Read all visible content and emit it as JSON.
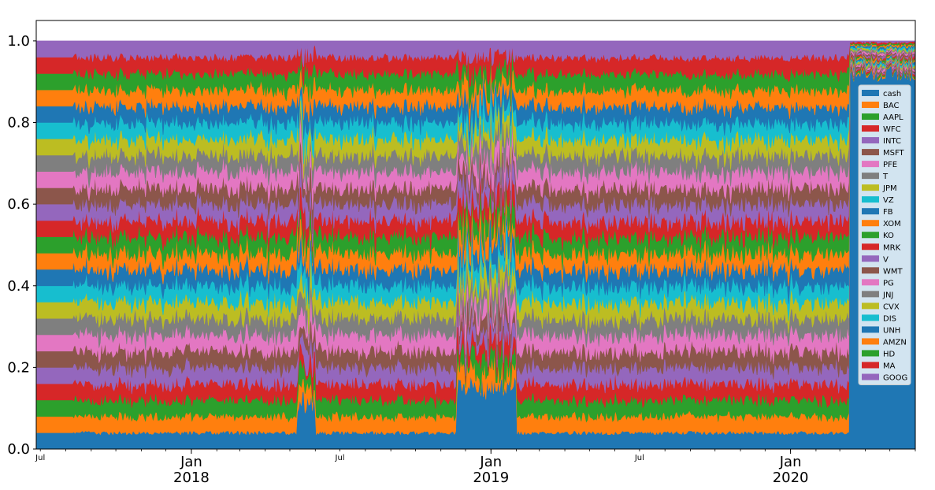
{
  "chart_data": {
    "type": "area",
    "stacked": true,
    "title": "",
    "xlabel": "",
    "ylabel": "",
    "ylim": [
      0.0,
      1.05
    ],
    "xlim": [
      "2017-06-26",
      "2020-06-01"
    ],
    "yticks": [
      "0.0",
      "0.2",
      "0.4",
      "0.6",
      "0.8",
      "1.0"
    ],
    "xticks_major": [
      {
        "date": "2018-01-01",
        "label": "Jan",
        "year": "2018"
      },
      {
        "date": "2019-01-01",
        "label": "Jan",
        "year": "2019"
      },
      {
        "date": "2020-01-01",
        "label": "Jan",
        "year": "2020"
      }
    ],
    "xticks_minor_labeled": [
      {
        "date": "2017-07-01",
        "label": "Jul"
      },
      {
        "date": "2018-07-01",
        "label": "Jul"
      },
      {
        "date": "2019-07-01",
        "label": "Jul"
      }
    ],
    "grid": false,
    "legend_placement": "right",
    "series": [
      {
        "name": "cash",
        "color": "#1f77b4"
      },
      {
        "name": "BAC",
        "color": "#ff7f0e"
      },
      {
        "name": "AAPL",
        "color": "#2ca02c"
      },
      {
        "name": "WFC",
        "color": "#d62728"
      },
      {
        "name": "INTC",
        "color": "#9467bd"
      },
      {
        "name": "MSFT",
        "color": "#8c564b"
      },
      {
        "name": "PFE",
        "color": "#e377c2"
      },
      {
        "name": "T",
        "color": "#7f7f7f"
      },
      {
        "name": "JPM",
        "color": "#bcbd22"
      },
      {
        "name": "VZ",
        "color": "#17becf"
      },
      {
        "name": "FB",
        "color": "#1f77b4"
      },
      {
        "name": "XOM",
        "color": "#ff7f0e"
      },
      {
        "name": "KO",
        "color": "#2ca02c"
      },
      {
        "name": "MRK",
        "color": "#d62728"
      },
      {
        "name": "V",
        "color": "#9467bd"
      },
      {
        "name": "WMT",
        "color": "#8c564b"
      },
      {
        "name": "PG",
        "color": "#e377c2"
      },
      {
        "name": "JNJ",
        "color": "#7f7f7f"
      },
      {
        "name": "CVX",
        "color": "#bcbd22"
      },
      {
        "name": "DIS",
        "color": "#17becf"
      },
      {
        "name": "UNH",
        "color": "#1f77b4"
      },
      {
        "name": "AMZN",
        "color": "#ff7f0e"
      },
      {
        "name": "HD",
        "color": "#2ca02c"
      },
      {
        "name": "MA",
        "color": "#d62728"
      },
      {
        "name": "GOOG",
        "color": "#9467bd"
      }
    ],
    "regimes": [
      {
        "from": "2017-06-26",
        "to": "2017-08-10",
        "cash": 0.04,
        "pattern": "constant"
      },
      {
        "from": "2017-08-10",
        "to": "2018-05-10",
        "cash": 0.04,
        "pattern": "noisy"
      },
      {
        "from": "2018-05-10",
        "to": "2018-06-01",
        "cash": 0.08,
        "pattern": "disrupted"
      },
      {
        "from": "2018-06-01",
        "to": "2018-11-20",
        "cash": 0.04,
        "pattern": "noisy"
      },
      {
        "from": "2018-11-20",
        "to": "2019-02-01",
        "cash": 0.12,
        "pattern": "disrupted"
      },
      {
        "from": "2019-02-01",
        "to": "2020-03-12",
        "cash": 0.04,
        "pattern": "noisy"
      },
      {
        "from": "2020-03-12",
        "to": "2020-06-01",
        "cash": 0.92,
        "pattern": "mostly-cash"
      }
    ]
  }
}
